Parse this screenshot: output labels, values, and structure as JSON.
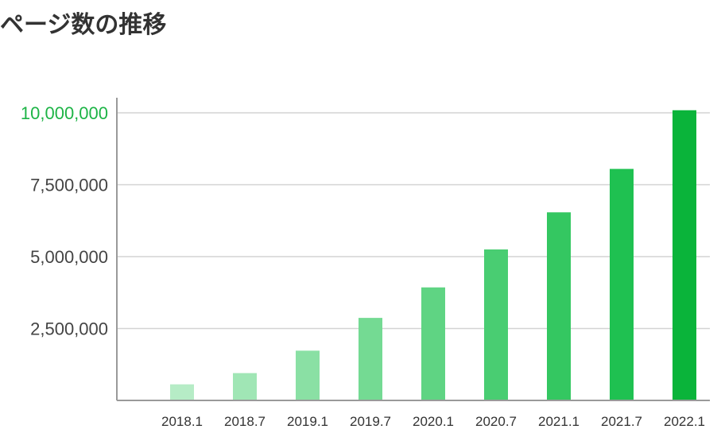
{
  "title": "ページ数の推移",
  "chart_data": {
    "type": "bar",
    "title": "ページ数の推移",
    "xlabel": "",
    "ylabel": "",
    "categories": [
      "2018.1",
      "2018.7",
      "2019.1",
      "2019.7",
      "2020.1",
      "2020.7",
      "2021.1",
      "2021.7",
      "2022.1"
    ],
    "values": [
      560000,
      950000,
      1730000,
      2870000,
      3930000,
      5250000,
      6540000,
      8050000,
      10090000
    ],
    "ylim": [
      0,
      10000000
    ],
    "yticks": [
      2500000,
      5000000,
      7500000,
      10000000
    ],
    "ytick_labels": [
      "2,500,000",
      "5,000,000",
      "7,500,000",
      "10,000,000"
    ],
    "grid": true,
    "legend": "none",
    "bar_colors": [
      "#b6ecc6",
      "#a0e6b5",
      "#8ae0a4",
      "#74da93",
      "#5fd483",
      "#49cd72",
      "#34c761",
      "#1fc151",
      "#0ab43a"
    ],
    "top_tick_color": "#1db446"
  }
}
